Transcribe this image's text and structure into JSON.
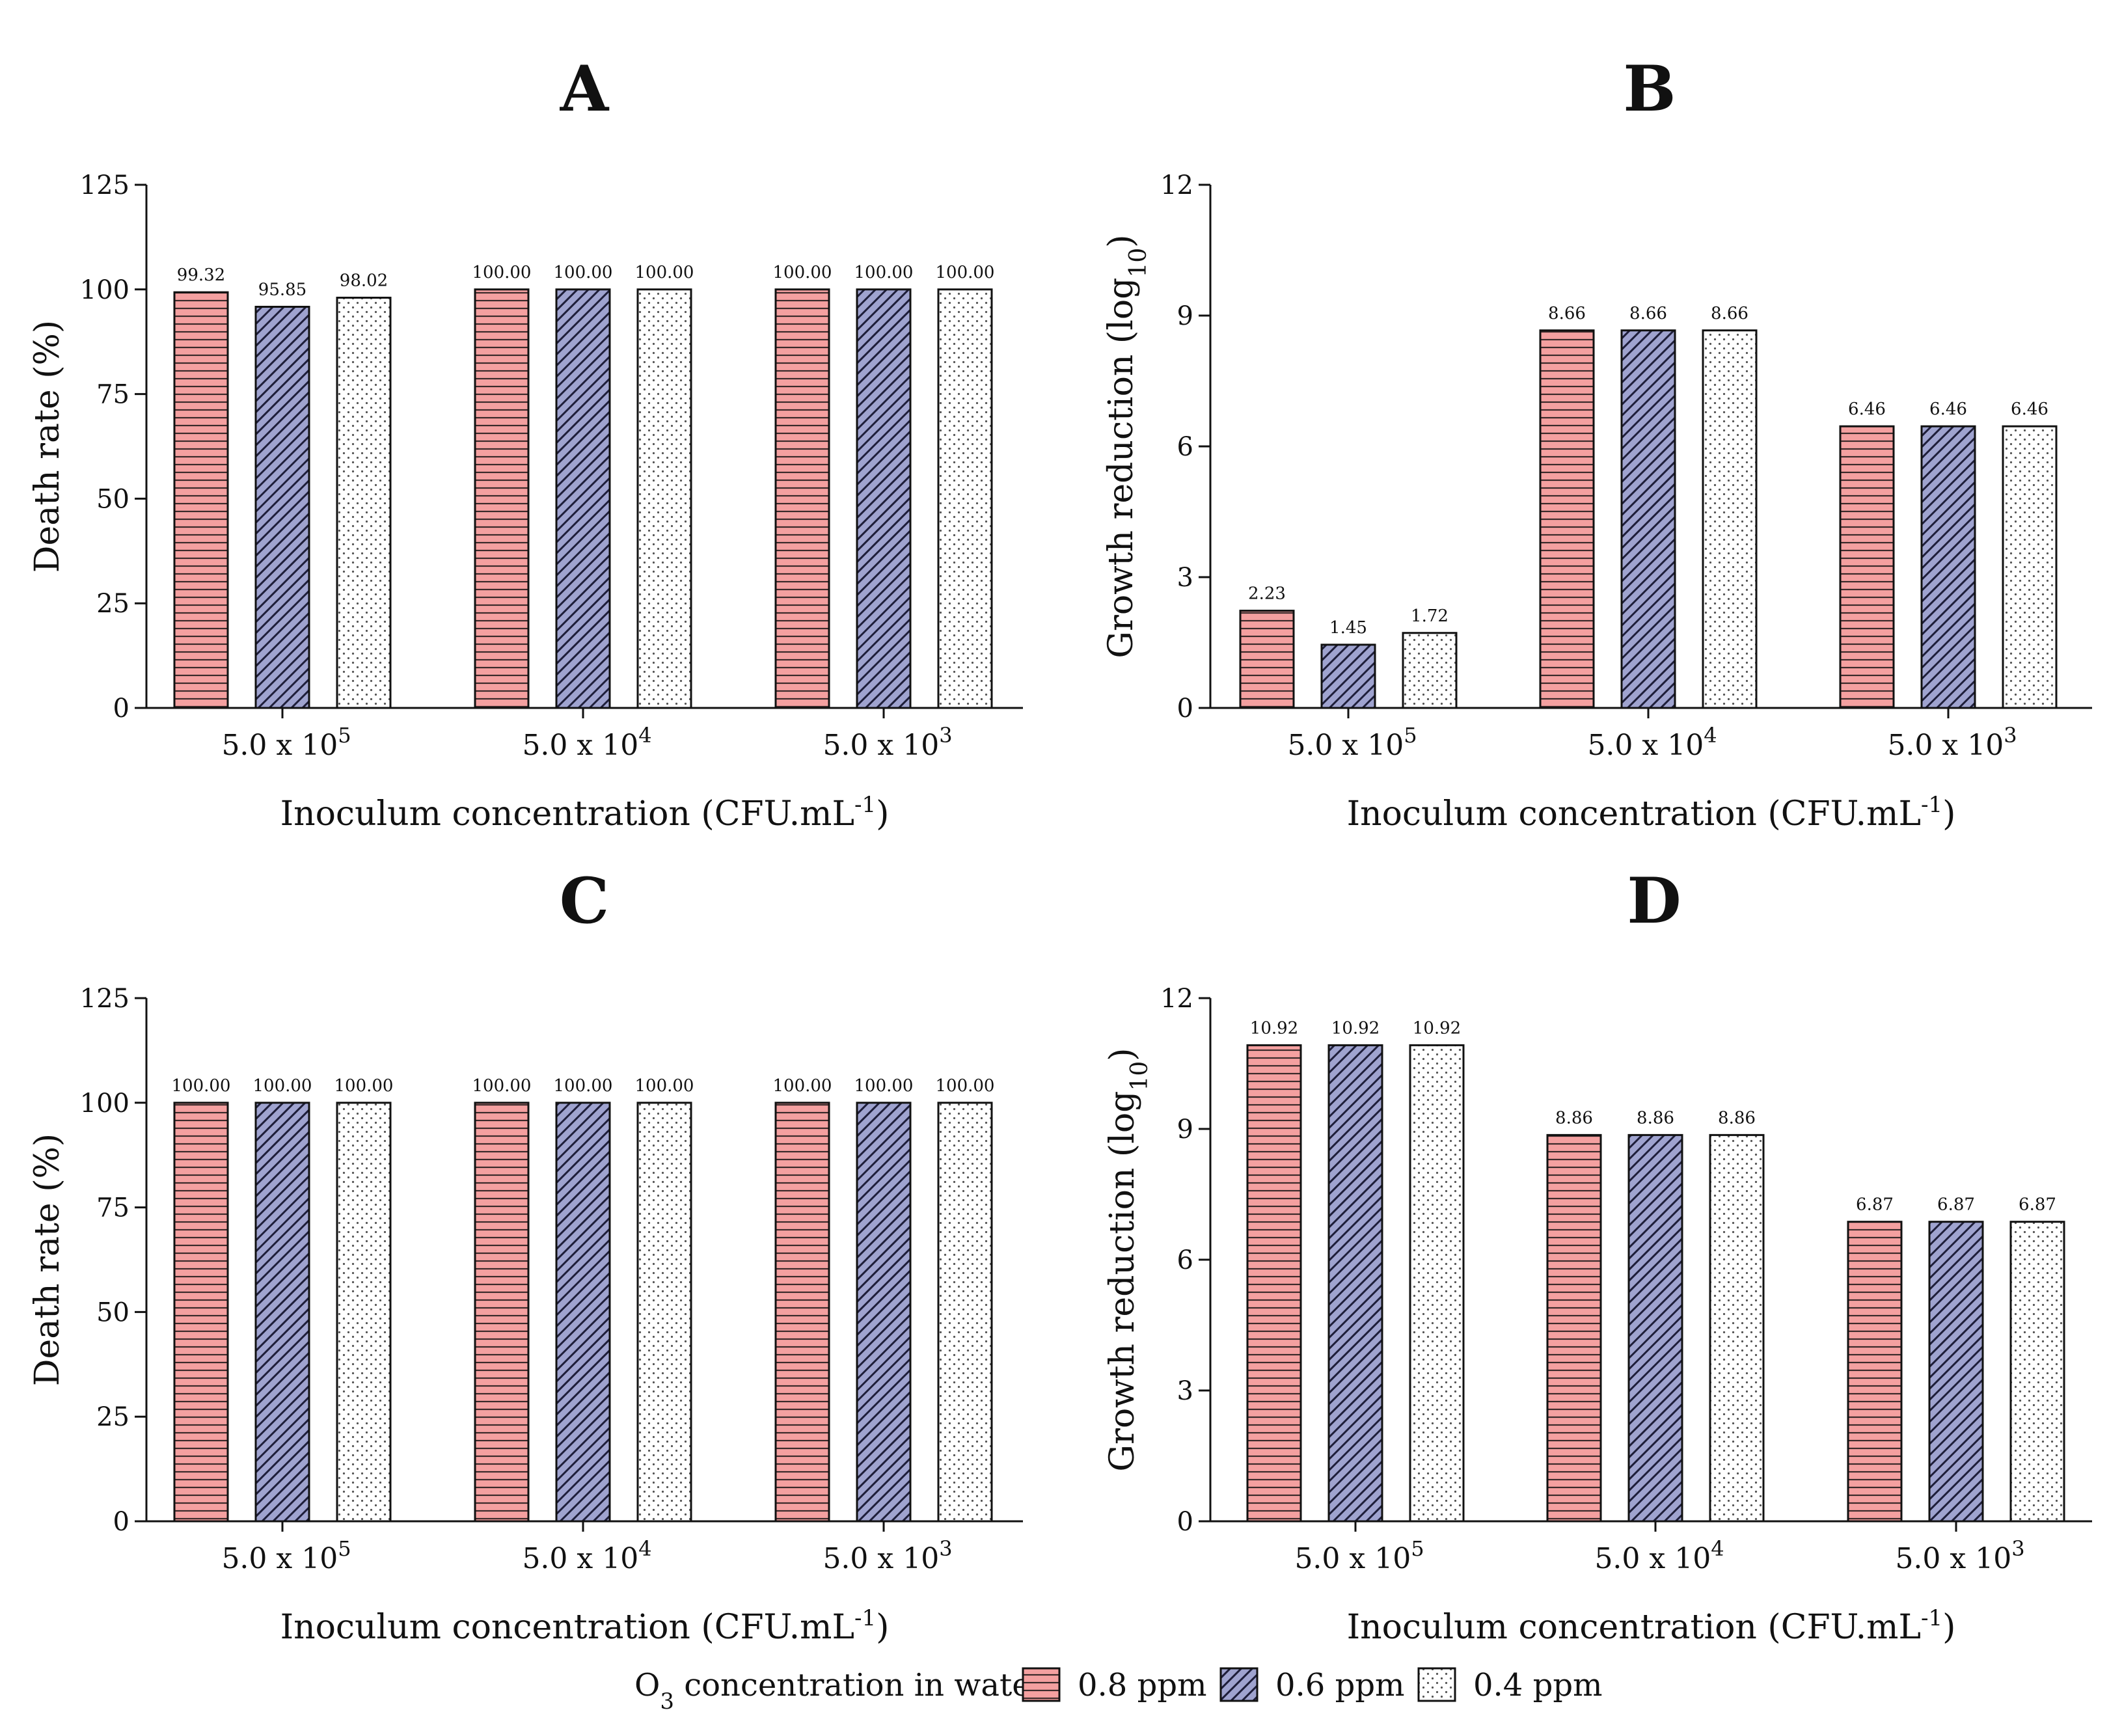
{
  "colors": {
    "series_0.8ppm": "#f4a0a0",
    "series_0.6ppm": "#9fa3cf",
    "series_0.4ppm": "#ffffff",
    "axis": "#111111"
  },
  "legend": {
    "title_prefix": "O",
    "title_subscript": "3",
    "title_suffix": " concentration in water:",
    "items": [
      "0.8 ppm",
      "0.6 ppm",
      "0.4 ppm"
    ]
  },
  "chart_data": [
    {
      "panel": "A",
      "type": "bar",
      "title": "A",
      "ylabel": "Death rate (%)",
      "xlabel": "Inoculum concentration (CFU.mL",
      "xlabel_sup": "-1",
      "xlabel_end": ")",
      "ylim": [
        0,
        125
      ],
      "yticks": [
        0,
        25,
        50,
        75,
        100,
        125
      ],
      "categories": [
        {
          "base": "5.0 x 10",
          "exp": "5"
        },
        {
          "base": "5.0 x 10",
          "exp": "4"
        },
        {
          "base": "5.0 x 10",
          "exp": "3"
        }
      ],
      "series": [
        {
          "name": "0.8 ppm",
          "values": [
            99.32,
            100.0,
            100.0
          ],
          "labels": [
            "99.32",
            "100.00",
            "100.00"
          ]
        },
        {
          "name": "0.6 ppm",
          "values": [
            95.85,
            100.0,
            100.0
          ],
          "labels": [
            "95.85",
            "100.00",
            "100.00"
          ]
        },
        {
          "name": "0.4 ppm",
          "values": [
            98.02,
            100.0,
            100.0
          ],
          "labels": [
            "98.02",
            "100.00",
            "100.00"
          ]
        }
      ]
    },
    {
      "panel": "B",
      "type": "bar",
      "title": "B",
      "ylabel": "Growth reduction (log",
      "ylabel_sub": "10",
      "ylabel_end": ")",
      "xlabel": "Inoculum concentration (CFU.mL",
      "xlabel_sup": "-1",
      "xlabel_end": ")",
      "ylim": [
        0,
        12
      ],
      "yticks": [
        0,
        3,
        6,
        9,
        12
      ],
      "categories": [
        {
          "base": "5.0 x 10",
          "exp": "5"
        },
        {
          "base": "5.0 x 10",
          "exp": "4"
        },
        {
          "base": "5.0 x 10",
          "exp": "3"
        }
      ],
      "series": [
        {
          "name": "0.8 ppm",
          "values": [
            2.23,
            8.66,
            6.46
          ],
          "labels": [
            "2.23",
            "8.66",
            "6.46"
          ]
        },
        {
          "name": "0.6 ppm",
          "values": [
            1.45,
            8.66,
            6.46
          ],
          "labels": [
            "1.45",
            "8.66",
            "6.46"
          ]
        },
        {
          "name": "0.4 ppm",
          "values": [
            1.72,
            8.66,
            6.46
          ],
          "labels": [
            "1.72",
            "8.66",
            "6.46"
          ]
        }
      ]
    },
    {
      "panel": "C",
      "type": "bar",
      "title": "C",
      "ylabel": "Death rate (%)",
      "xlabel": "Inoculum concentration (CFU.mL",
      "xlabel_sup": "-1",
      "xlabel_end": ")",
      "ylim": [
        0,
        125
      ],
      "yticks": [
        0,
        25,
        50,
        75,
        100,
        125
      ],
      "categories": [
        {
          "base": "5.0 x 10",
          "exp": "5"
        },
        {
          "base": "5.0 x 10",
          "exp": "4"
        },
        {
          "base": "5.0 x 10",
          "exp": "3"
        }
      ],
      "series": [
        {
          "name": "0.8 ppm",
          "values": [
            100.0,
            100.0,
            100.0
          ],
          "labels": [
            "100.00",
            "100.00",
            "100.00"
          ]
        },
        {
          "name": "0.6 ppm",
          "values": [
            100.0,
            100.0,
            100.0
          ],
          "labels": [
            "100.00",
            "100.00",
            "100.00"
          ]
        },
        {
          "name": "0.4 ppm",
          "values": [
            100.0,
            100.0,
            100.0
          ],
          "labels": [
            "100.00",
            "100.00",
            "100.00"
          ]
        }
      ]
    },
    {
      "panel": "D",
      "type": "bar",
      "title": "D",
      "ylabel": "Growth reduction (log",
      "ylabel_sub": "10",
      "ylabel_end": ")",
      "xlabel": "Inoculum concentration (CFU.mL",
      "xlabel_sup": "-1",
      "xlabel_end": ")",
      "ylim": [
        0,
        12
      ],
      "yticks": [
        0,
        3,
        6,
        9,
        12
      ],
      "categories": [
        {
          "base": "5.0 x 10",
          "exp": "5"
        },
        {
          "base": "5.0 x 10",
          "exp": "4"
        },
        {
          "base": "5.0 x 10",
          "exp": "3"
        }
      ],
      "series": [
        {
          "name": "0.8 ppm",
          "values": [
            10.92,
            8.86,
            6.87
          ],
          "labels": [
            "10.92",
            "8.86",
            "6.87"
          ]
        },
        {
          "name": "0.6 ppm",
          "values": [
            10.92,
            8.86,
            6.87
          ],
          "labels": [
            "10.92",
            "8.86",
            "6.87"
          ]
        },
        {
          "name": "0.4 ppm",
          "values": [
            10.92,
            8.86,
            6.87
          ],
          "labels": [
            "10.92",
            "8.86",
            "6.87"
          ]
        }
      ]
    }
  ]
}
